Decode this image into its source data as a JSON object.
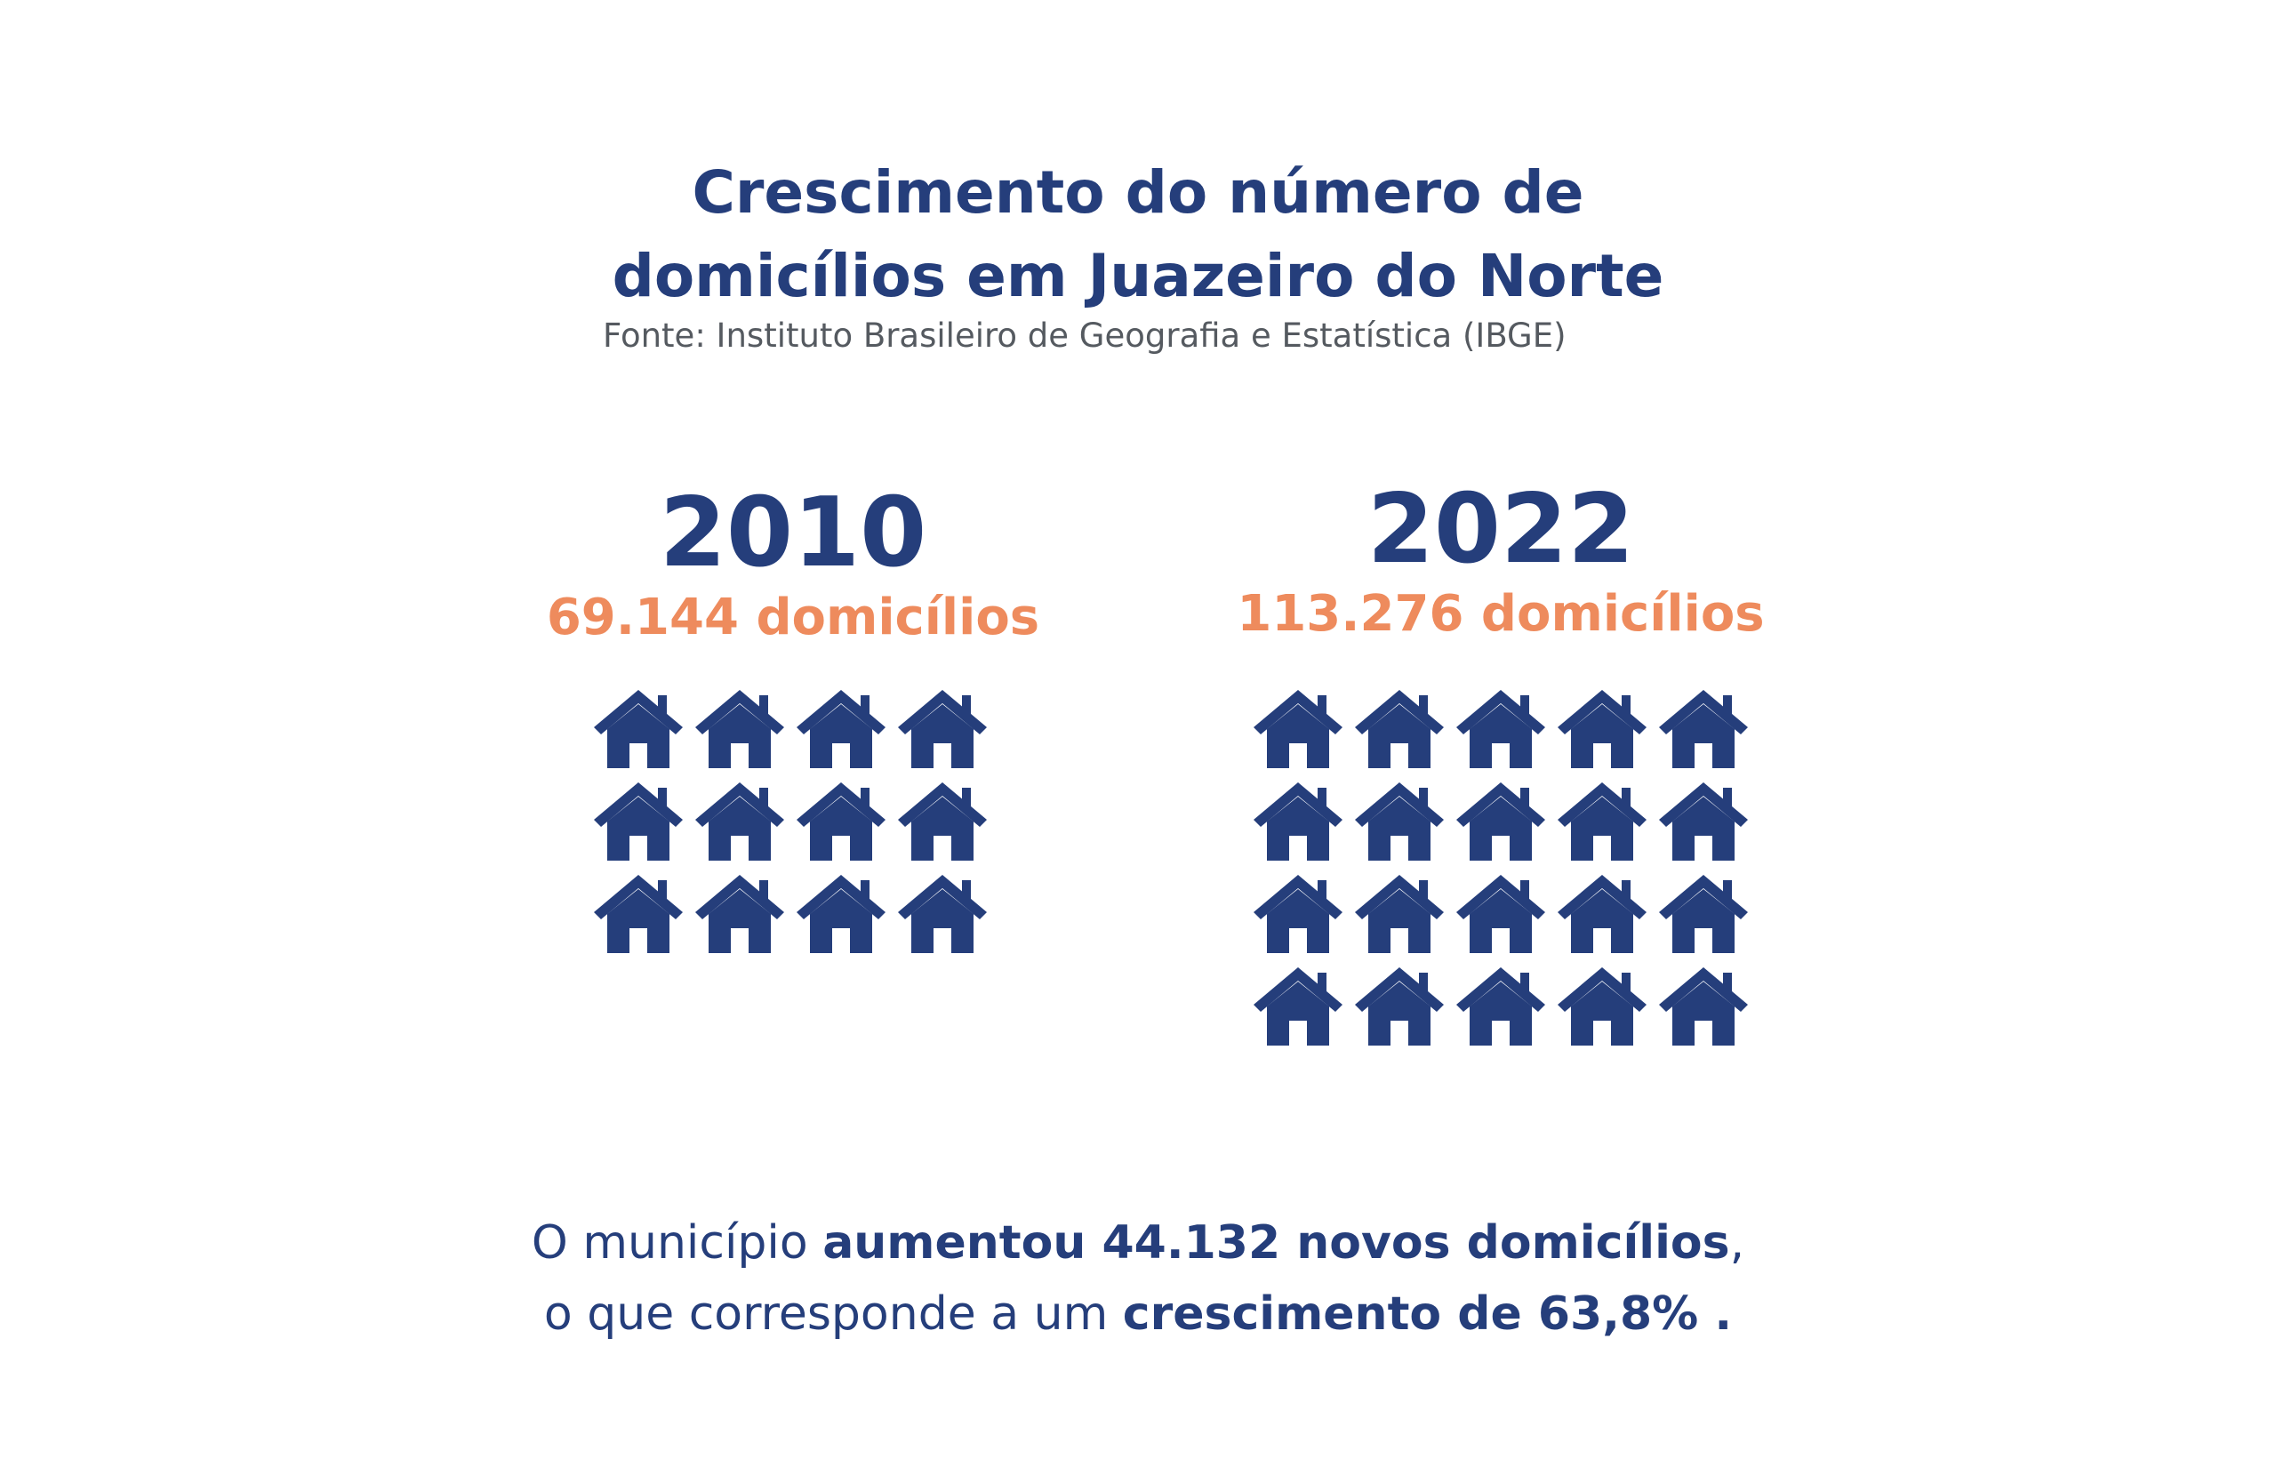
{
  "chart_data": {
    "type": "pictogram",
    "title": [
      "Crescimento do número de",
      "domicílios em Juazeiro do Norte"
    ],
    "source": "Fonte: Instituto Brasileiro de Geografia e Estatística (IBGE)",
    "series": [
      {
        "year": "2010",
        "label": "69.144 domicílios",
        "value": 69144,
        "icons": {
          "rows": 3,
          "cols": 4
        }
      },
      {
        "year": "2022",
        "label": "113.276 domicílios",
        "value": 113276,
        "icons": {
          "rows": 4,
          "cols": 5
        }
      }
    ],
    "colors": {
      "primary": "#253e7b",
      "accent": "#ee8b5d",
      "source": "#555a60"
    },
    "icon": "house-icon"
  },
  "summary": {
    "line1_regular": "O município ",
    "line1_bold": "aumentou 44.132 novos domicílios",
    "line1_end": ",",
    "line2_regular": "o que corresponde a um ",
    "line2_bold": "crescimento de 63,8% ."
  }
}
